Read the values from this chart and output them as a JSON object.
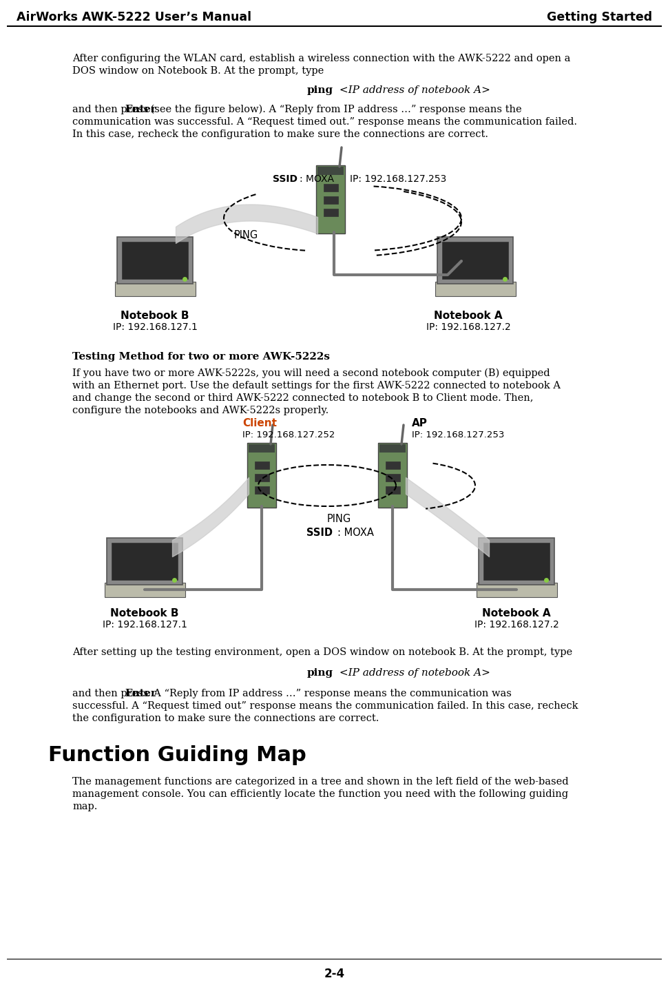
{
  "header_left": "AirWorks AWK-5222 User’s Manual",
  "header_right": "Getting Started",
  "footer": "2-4",
  "background_color": "#ffffff",
  "header_font_size": 12.5,
  "body_font_size": 10.5,
  "section_title": "Function Guiding Map",
  "section_title_font_size": 22,
  "para1_line1": "After configuring the WLAN card, establish a wireless connection with the AWK-5222 and open a",
  "para1_line2": "DOS window on Notebook B. At the prompt, type",
  "ping_bold": "ping",
  "ping_italic": " <IP address of notebook A>",
  "para2_pre_enter": "and then press ",
  "enter_bold": "Enter",
  "para2_rest": " (see the figure below). A “Reply from IP address …” response means the",
  "para2_line2": "communication was successful. A “Request timed out.” response means the communication failed.",
  "para2_line3": "In this case, recheck the configuration to make sure the connections are correct.",
  "sub_title": "Testing Method for two or more AWK-5222s",
  "para3_line1": "If you have two or more AWK-5222s, you will need a second notebook computer (B) equipped",
  "para3_line2": "with an Ethernet port. Use the default settings for the first AWK-5222 connected to notebook A",
  "para3_line3": "and change the second or third AWK-5222 connected to notebook B to Client mode. Then,",
  "para3_line4": "configure the notebooks and AWK-5222s properly.",
  "para4": "After setting up the testing environment, open a DOS window on notebook B. At the prompt, type",
  "para5_pre_enter": "and then press ",
  "enter_bold2": "Enter",
  "para5_rest": ". A “Reply from IP address …” response means the communication was",
  "para5_line2": "successful. A “Request timed out” response means the communication failed. In this case, recheck",
  "para5_line3": "the configuration to make sure the connections are correct.",
  "section_body_line1": "The management functions are categorized in a tree and shown in the left field of the web-based",
  "section_body_line2": "management console. You can efficiently locate the function you need with the following guiding",
  "section_body_line3": "map.",
  "diag1_ssid_bold": "SSID",
  "diag1_ssid_rest": ": MOXA",
  "diag1_ip": "IP: 192.168.127.253",
  "diag1_ping": "PING",
  "diag1_nb_b_label": "Notebook B",
  "diag1_nb_b_ip": "IP: 192.168.127.1",
  "diag1_nb_a_label": "Notebook A",
  "diag1_nb_a_ip": "IP: 192.168.127.2",
  "diag2_client_bold": "Client",
  "diag2_client_ip": "IP: 192.168.127.252",
  "diag2_ap_bold": "AP",
  "diag2_ap_ip": "IP: 192.168.127.253",
  "diag2_ping": "PING",
  "diag2_ssid_bold": "SSID",
  "diag2_ssid_rest": ": MOXA",
  "diag2_nb_b_label": "Notebook B",
  "diag2_nb_b_ip": "IP: 192.168.127.1",
  "diag2_nb_a_label": "Notebook A",
  "diag2_nb_a_ip": "IP: 192.168.127.2",
  "nb_screen_color": "#2a2a2a",
  "nb_body_color": "#888888",
  "nb_keyboard_color": "#bbbbaa",
  "awk_color_green": "#6a8a5a",
  "awk_color_dark": "#404840",
  "cable_color": "#888888",
  "wire_connect_color": "#5577cc"
}
